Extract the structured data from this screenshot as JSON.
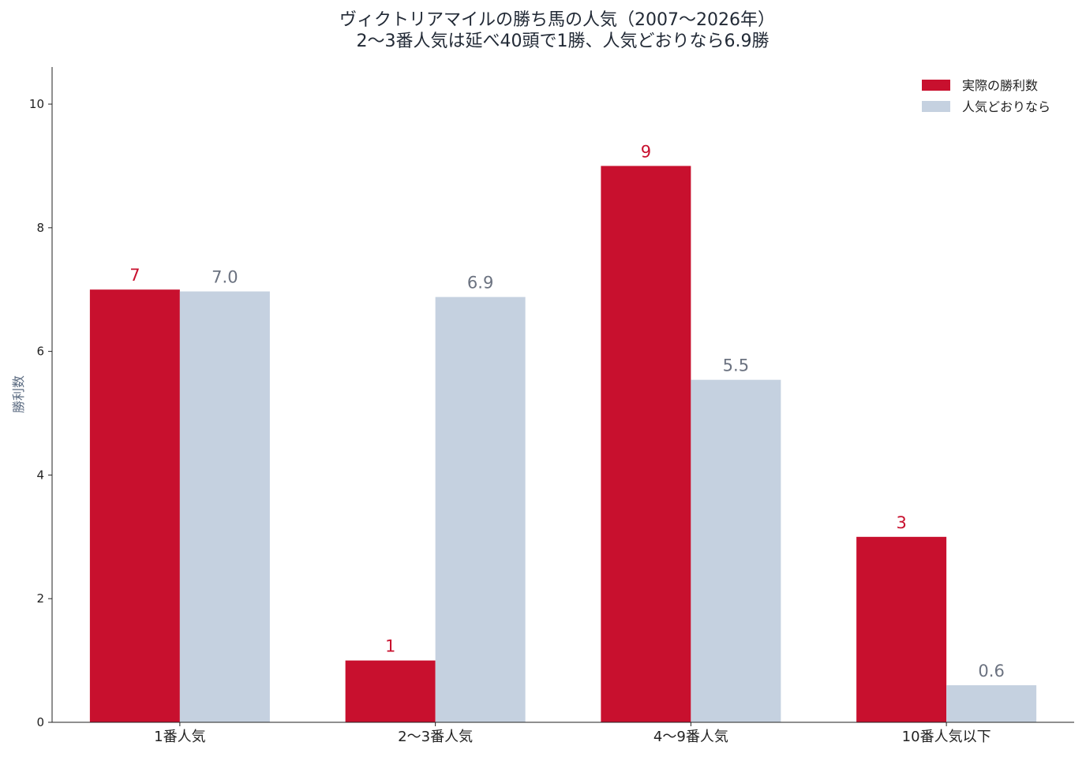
{
  "chart_data": {
    "type": "bar",
    "title": "ヴィクトリアマイルの勝ち馬の人気（2007〜2026年）",
    "subtitle": "2〜3番人気は延べ40頭で1勝、人気どおりなら6.9勝",
    "xlabel": "",
    "ylabel": "勝利数",
    "categories": [
      "1番人気",
      "2〜3番人気",
      "4〜9番人気",
      "10番人気以下"
    ],
    "series": [
      {
        "name": "実際の勝利数",
        "values": [
          7,
          1,
          9,
          3
        ],
        "value_labels": [
          "7",
          "1",
          "9",
          "3"
        ],
        "color": "#c8102e"
      },
      {
        "name": "人気どおりなら",
        "values": [
          6.97,
          6.88,
          5.54,
          0.6
        ],
        "value_labels": [
          "7.0",
          "6.9",
          "5.5",
          "0.6"
        ],
        "color": "#c5d1e0"
      }
    ],
    "ylim": [
      0,
      10.6
    ],
    "yticks": [
      "0",
      "2",
      "4",
      "6",
      "8",
      "10"
    ],
    "grid": false,
    "legend_position": "top-right"
  }
}
